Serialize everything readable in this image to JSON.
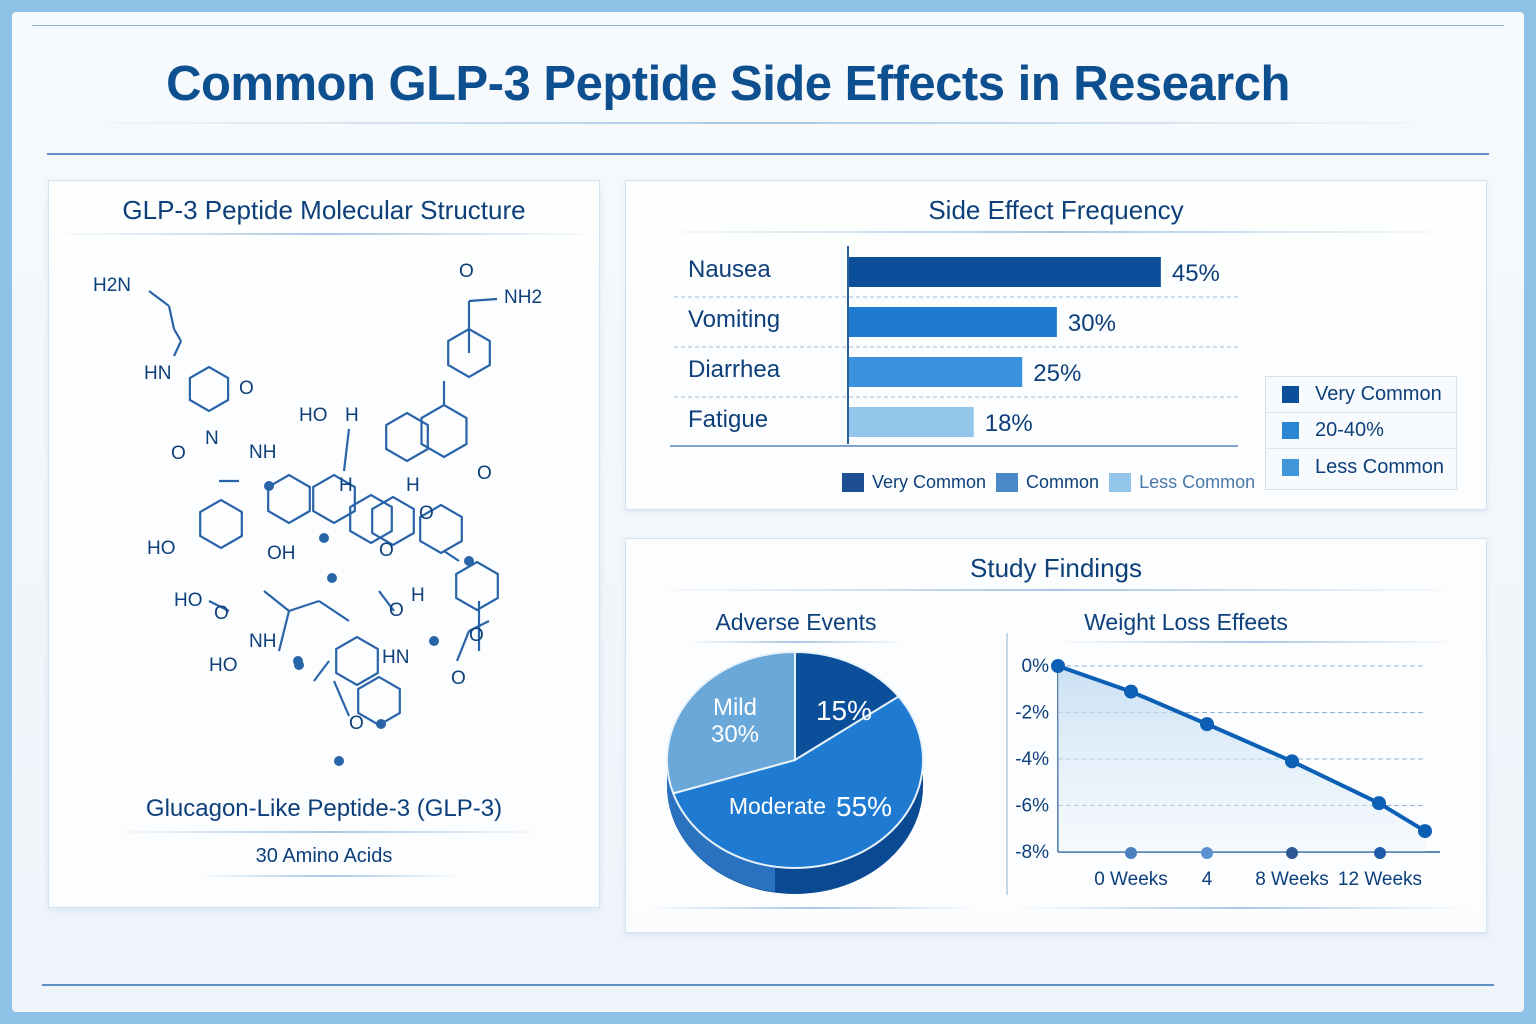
{
  "title": "Common GLP-3 Peptide Side Effects in Research",
  "structure_panel": {
    "title": "GLP-3 Peptide Molecular Structure",
    "caption": "Glucagon-Like Peptide-3 (GLP-3)",
    "subcaption": "30 Amino Acids",
    "molecule_labels": [
      "H2N",
      "NH2",
      "O",
      "HN",
      "O",
      "O",
      "N",
      "NH",
      "HO",
      "HO",
      "OH",
      "HO",
      "H",
      "H",
      "O",
      "O",
      "O",
      "H",
      "HO",
      "O",
      "NH",
      "HN",
      "O",
      "O",
      "O",
      "H",
      "O"
    ]
  },
  "colors": {
    "very_common": "#0b4f9a",
    "common": "#1f7bd1",
    "moderate": "#3b92dc",
    "less_common": "#93c6ea",
    "mild": "#6aa8da",
    "title": "#0d4f8f"
  },
  "chart_data": [
    {
      "type": "bar",
      "orientation": "horizontal",
      "title": "Side Effect Frequency",
      "categories": [
        "Nausea",
        "Vomiting",
        "Diarrhea",
        "Fatigue"
      ],
      "values": [
        45,
        30,
        25,
        18
      ],
      "data_labels": [
        "45%",
        "30%",
        "25%",
        "18%"
      ],
      "bar_colors": [
        "#0b4f9a",
        "#1f7bd1",
        "#3b92dc",
        "#93c6ea"
      ],
      "grid": true,
      "legend_bottom": [
        {
          "label": "Very Common",
          "color": "#1d4f92"
        },
        {
          "label": "Common",
          "color": "#4a88c8"
        },
        {
          "label": "Less Common",
          "color": "#93c6ea"
        }
      ],
      "legend_right": [
        {
          "label": "Very Common",
          "color": "#0b4f9a"
        },
        {
          "label": "20-40%",
          "color": "#2a85d3"
        },
        {
          "label": "Less Common",
          "color": "#4196da"
        }
      ]
    },
    {
      "type": "pie",
      "section_title": "Study Findings",
      "title": "Adverse Events",
      "slices": [
        {
          "label": "",
          "value": 15,
          "text": "15%",
          "color": "#0b4f9a"
        },
        {
          "label": "Moderate",
          "value": 55,
          "text": "55%",
          "color": "#1f7bd1"
        },
        {
          "label": "Mild",
          "value": 30,
          "text": "30%",
          "color": "#6aa8da"
        }
      ]
    },
    {
      "type": "line",
      "title": "Weight Loss Effeets",
      "y_ticks": [
        "0%",
        "-2%",
        "-4%",
        "-6%",
        "-8%"
      ],
      "ylim": [
        -8,
        0
      ],
      "x_tick_labels": [
        "0 Weeks",
        "4",
        "8 Weeks",
        "12 Weeks"
      ],
      "values": [
        0,
        -1.1,
        -2.5,
        -4.1,
        -5.9,
        -7.1
      ],
      "grid": true,
      "color": "#0b5fb5"
    }
  ]
}
